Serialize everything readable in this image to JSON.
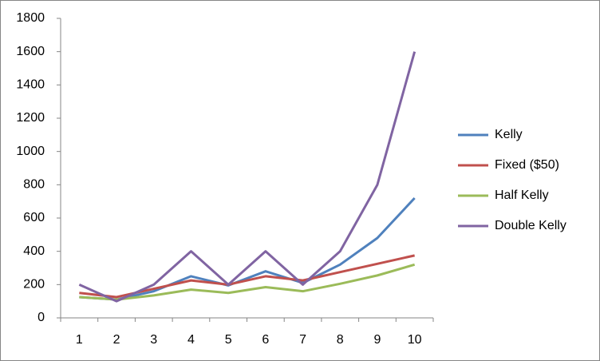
{
  "chart_data": {
    "type": "line",
    "categories": [
      "1",
      "2",
      "3",
      "4",
      "5",
      "6",
      "7",
      "8",
      "9",
      "10"
    ],
    "series": [
      {
        "name": "Kelly",
        "color": "#4f81bd",
        "values": [
          125,
          110,
          160,
          250,
          195,
          280,
          210,
          320,
          480,
          720
        ]
      },
      {
        "name": "Fixed ($50)",
        "color": "#c0504d",
        "values": [
          150,
          125,
          175,
          225,
          200,
          250,
          225,
          275,
          325,
          375
        ]
      },
      {
        "name": "Half Kelly",
        "color": "#9bbb59",
        "values": [
          125,
          110,
          135,
          170,
          150,
          185,
          160,
          205,
          255,
          320
        ]
      },
      {
        "name": "Double Kelly",
        "color": "#8064a2",
        "values": [
          200,
          100,
          200,
          400,
          200,
          400,
          200,
          400,
          800,
          1600
        ]
      }
    ],
    "ylim": [
      0,
      1800
    ],
    "yticks": [
      0,
      200,
      400,
      600,
      800,
      1000,
      1200,
      1400,
      1600,
      1800
    ],
    "grid": false,
    "legend": "right"
  }
}
